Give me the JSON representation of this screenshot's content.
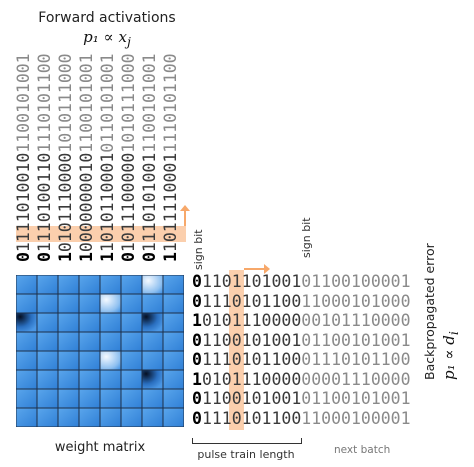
{
  "forward": {
    "title": "Forward activations",
    "formula": "p₁ ∝ x",
    "formula_sub": "j",
    "columns": [
      [
        "0",
        "1111010010",
        "1100101001"
      ],
      [
        "0",
        "1110100110",
        "1110101100"
      ],
      [
        "1",
        "0101110000",
        "1010111000"
      ],
      [
        "1",
        "0000000010",
        "1100101001"
      ],
      [
        "1",
        "1010110001",
        "0110101001"
      ],
      [
        "0",
        "1011100000",
        "1010111000"
      ],
      [
        "0",
        "1110101001",
        "1100101001"
      ],
      [
        "1",
        "1011110001",
        "1110101100"
      ]
    ]
  },
  "backprop": {
    "label": "Backpropagated error",
    "formula": "p₁ ∝ d",
    "formula_sub": "i",
    "rows": [
      [
        "0",
        "1101101001",
        "01100100001"
      ],
      [
        "0",
        "1110101100",
        "11000101000"
      ],
      [
        "1",
        "0101110000",
        "00101110000"
      ],
      [
        "0",
        "1100101001",
        "01100101001"
      ],
      [
        "0",
        "1110101100",
        "01110101100"
      ],
      [
        "1",
        "0101110000",
        "00001110000"
      ],
      [
        "0",
        "1100101001",
        "01100101001"
      ],
      [
        "0",
        "1110101100",
        "11000100001"
      ]
    ]
  },
  "labels": {
    "sign_bit_left": "sign bit",
    "sign_bit_right": "sign bit",
    "weight_matrix": "weight matrix",
    "pulse_train_length": "pulse train length",
    "next_batch": "next batch"
  },
  "colors": {
    "highlight": "#f7a86a",
    "matrix_base": "#3f8ee0",
    "matrix_dark": "#0a1e3c",
    "matrix_light": "#e8f2fc"
  },
  "matrix": {
    "size": 8,
    "cells": [
      [
        0.55,
        0.6,
        0.55,
        0.6,
        0.5,
        0.6,
        0.2,
        0.5
      ],
      [
        0.6,
        0.55,
        0.6,
        0.55,
        0.2,
        0.6,
        0.55,
        0.6
      ],
      [
        0.1,
        0.55,
        0.6,
        0.55,
        0.6,
        0.55,
        0.1,
        0.55
      ],
      [
        0.6,
        0.55,
        0.5,
        0.6,
        0.55,
        0.6,
        0.55,
        0.6
      ],
      [
        0.55,
        0.6,
        0.55,
        0.6,
        0.15,
        0.55,
        0.6,
        0.55
      ],
      [
        0.6,
        0.55,
        0.6,
        0.55,
        0.6,
        0.5,
        0.1,
        0.55
      ],
      [
        0.55,
        0.6,
        0.55,
        0.6,
        0.55,
        0.6,
        0.55,
        0.6
      ],
      [
        0.6,
        0.55,
        0.6,
        0.55,
        0.6,
        0.55,
        0.6,
        0.55
      ]
    ]
  }
}
